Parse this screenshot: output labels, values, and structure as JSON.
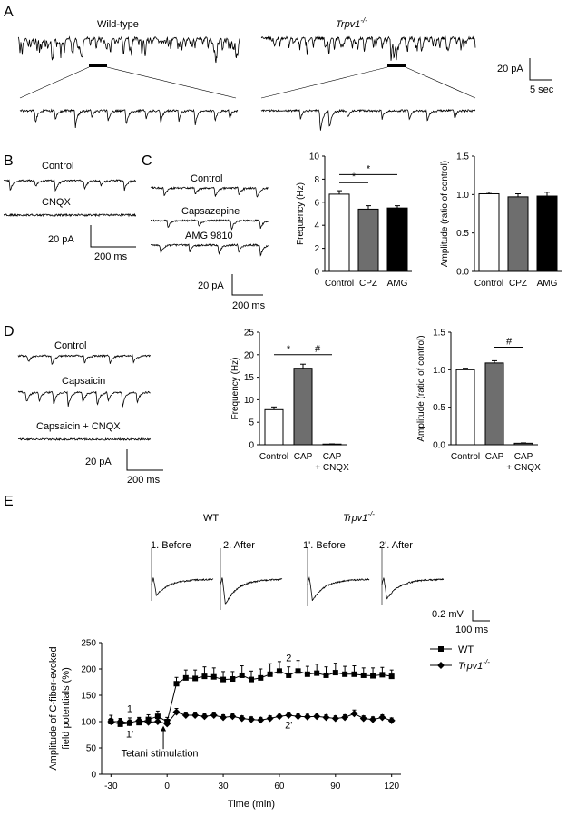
{
  "panels": {
    "A": {
      "letter": "A",
      "wt_label": "Wild-type",
      "ko_label": "Trpv1",
      "ko_sup": "-/-",
      "scale_amp": "20 pA",
      "scale_time": "5 sec"
    },
    "B": {
      "letter": "B",
      "control": "Control",
      "cnqx": "CNQX",
      "scale_amp": "20 pA",
      "scale_time": "200 ms"
    },
    "C": {
      "letter": "C",
      "trace_labels": [
        "Control",
        "Capsazepine",
        "AMG 9810"
      ],
      "scale_amp": "20 pA",
      "scale_time": "200 ms"
    },
    "D": {
      "letter": "D",
      "trace_labels": [
        "Control",
        "Capsaicin",
        "Capsaicin + CNQX"
      ],
      "scale_amp": "20 pA",
      "scale_time": "200 ms"
    },
    "E": {
      "letter": "E",
      "wt_label": "WT",
      "ko_label": "Trpv1",
      "ko_sup": "-/-",
      "trace_labels": [
        "1. Before",
        "2. After",
        "1'. Before",
        "2'. After"
      ],
      "scale_amp": "0.2 mV",
      "scale_time": "100 ms",
      "point_labels": [
        "1",
        "1'",
        "2",
        "2'"
      ],
      "arrow_label": "Tetani stimulation"
    }
  },
  "chart_data": [
    {
      "id": "C-frequency",
      "type": "bar",
      "categories": [
        "Control",
        "CPZ",
        "AMG"
      ],
      "values": [
        6.7,
        5.4,
        5.5
      ],
      "errors": [
        0.3,
        0.3,
        0.2
      ],
      "colors": [
        "#ffffff",
        "#6e6e6e",
        "#000000"
      ],
      "ylabel": "Frequency (Hz)",
      "ylim": [
        0,
        10
      ],
      "yticks": [
        0,
        2,
        4,
        6,
        8,
        10
      ],
      "sig_marks": [
        "*",
        "*"
      ]
    },
    {
      "id": "C-amplitude",
      "type": "bar",
      "categories": [
        "Control",
        "CPZ",
        "AMG"
      ],
      "values": [
        1.01,
        0.97,
        0.98
      ],
      "errors": [
        0.02,
        0.04,
        0.05
      ],
      "colors": [
        "#ffffff",
        "#6e6e6e",
        "#000000"
      ],
      "ylabel": "Amplitude (ratio of control)",
      "ylim": [
        0,
        1.5
      ],
      "yticks": [
        "0.0",
        "0.5",
        "1.0",
        "1.5"
      ]
    },
    {
      "id": "D-frequency",
      "type": "bar",
      "categories": [
        "Control",
        "CAP",
        "CAP\n+ CNQX"
      ],
      "values": [
        7.8,
        17.0,
        0.15
      ],
      "errors": [
        0.6,
        0.9,
        0.05
      ],
      "colors": [
        "#ffffff",
        "#6e6e6e",
        "#6e6e6e"
      ],
      "ylabel": "Frequency (Hz)",
      "ylim": [
        0,
        25
      ],
      "yticks": [
        0,
        5,
        10,
        15,
        20,
        25
      ],
      "sig_marks": [
        "*",
        "#"
      ]
    },
    {
      "id": "D-amplitude",
      "type": "bar",
      "categories": [
        "Control",
        "CAP",
        "CAP\n+ CNQX"
      ],
      "values": [
        1.0,
        1.09,
        0.02
      ],
      "errors": [
        0.02,
        0.03,
        0.005
      ],
      "colors": [
        "#ffffff",
        "#6e6e6e",
        "#6e6e6e"
      ],
      "ylabel": "Amplitude (ratio of control)",
      "ylim": [
        0,
        1.5
      ],
      "yticks": [
        "0.0",
        "0.5",
        "1.0",
        "1.5"
      ],
      "sig_marks": [
        "#"
      ]
    },
    {
      "id": "E-timecourse",
      "type": "line",
      "xlabel": "Time (min)",
      "ylabel_lines": [
        "Amplitude of C-fiber-evoked",
        "field potentials (%)"
      ],
      "xlim": [
        -35,
        125
      ],
      "ylim": [
        0,
        250
      ],
      "xticks": [
        -30,
        0,
        30,
        60,
        90,
        120
      ],
      "yticks": [
        0,
        50,
        100,
        150,
        200,
        250
      ],
      "legend": "top-right",
      "series": [
        {
          "name": "WT",
          "marker": "square",
          "x": [
            -30,
            -25,
            -20,
            -15,
            -10,
            -5,
            0,
            5,
            10,
            15,
            20,
            25,
            30,
            35,
            40,
            45,
            50,
            55,
            60,
            65,
            70,
            75,
            80,
            85,
            90,
            95,
            100,
            105,
            110,
            115,
            120
          ],
          "y": [
            100,
            95,
            97,
            98,
            104,
            110,
            100,
            172,
            183,
            182,
            186,
            185,
            180,
            181,
            188,
            180,
            183,
            190,
            196,
            188,
            196,
            190,
            192,
            188,
            193,
            190,
            190,
            188,
            187,
            189,
            186
          ],
          "err": [
            12,
            10,
            10,
            9,
            9,
            10,
            8,
            12,
            15,
            16,
            18,
            17,
            15,
            14,
            18,
            16,
            17,
            20,
            18,
            16,
            20,
            15,
            17,
            16,
            18,
            15,
            16,
            14,
            15,
            14,
            12
          ]
        },
        {
          "name": "Trpv1",
          "name_sup": "-/-",
          "marker": "diamond",
          "x": [
            -30,
            -25,
            -20,
            -15,
            -10,
            -5,
            0,
            5,
            10,
            15,
            20,
            25,
            30,
            35,
            40,
            45,
            50,
            55,
            60,
            65,
            70,
            75,
            80,
            85,
            90,
            95,
            100,
            105,
            110,
            115,
            120
          ],
          "y": [
            100,
            100,
            98,
            102,
            99,
            100,
            96,
            118,
            112,
            112,
            110,
            112,
            108,
            110,
            106,
            104,
            103,
            106,
            110,
            112,
            110,
            109,
            110,
            108,
            106,
            108,
            115,
            106,
            104,
            108,
            102
          ],
          "err": [
            6,
            6,
            5,
            6,
            5,
            6,
            5,
            7,
            6,
            6,
            5,
            6,
            5,
            5,
            5,
            5,
            5,
            5,
            6,
            6,
            5,
            5,
            6,
            5,
            5,
            5,
            7,
            5,
            5,
            5,
            5
          ]
        }
      ]
    }
  ]
}
